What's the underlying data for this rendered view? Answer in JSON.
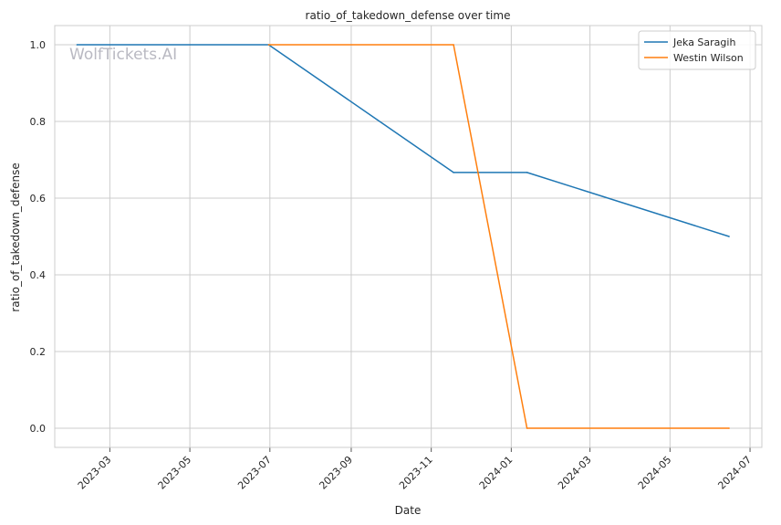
{
  "chart_data": {
    "type": "line",
    "title": "ratio_of_takedown_defense over time",
    "xlabel": "Date",
    "ylabel": "ratio_of_takedown_defense",
    "watermark": "WolfTickets.AI",
    "x_ticks": [
      "2023-03",
      "2023-05",
      "2023-07",
      "2023-09",
      "2023-11",
      "2024-01",
      "2024-03",
      "2024-05",
      "2024-07"
    ],
    "y_ticks": [
      "0.0",
      "0.2",
      "0.4",
      "0.6",
      "0.8",
      "1.0"
    ],
    "xlim": [
      "2023-01-18",
      "2024-07-10"
    ],
    "ylim": [
      -0.05,
      1.05
    ],
    "grid": true,
    "legend_position": "top-right",
    "series": [
      {
        "name": "Jeka Saragih",
        "color": "#1f77b4",
        "x": [
          "2023-02-04",
          "2023-06-30",
          "2023-11-18",
          "2024-01-13",
          "2024-06-15"
        ],
        "y": [
          1.0,
          1.0,
          0.667,
          0.667,
          0.5
        ]
      },
      {
        "name": "Westin Wilson",
        "color": "#ff7f0e",
        "x": [
          "2023-06-30",
          "2023-11-18",
          "2024-01-13",
          "2024-06-15"
        ],
        "y": [
          1.0,
          1.0,
          0.0,
          0.0
        ]
      }
    ]
  }
}
